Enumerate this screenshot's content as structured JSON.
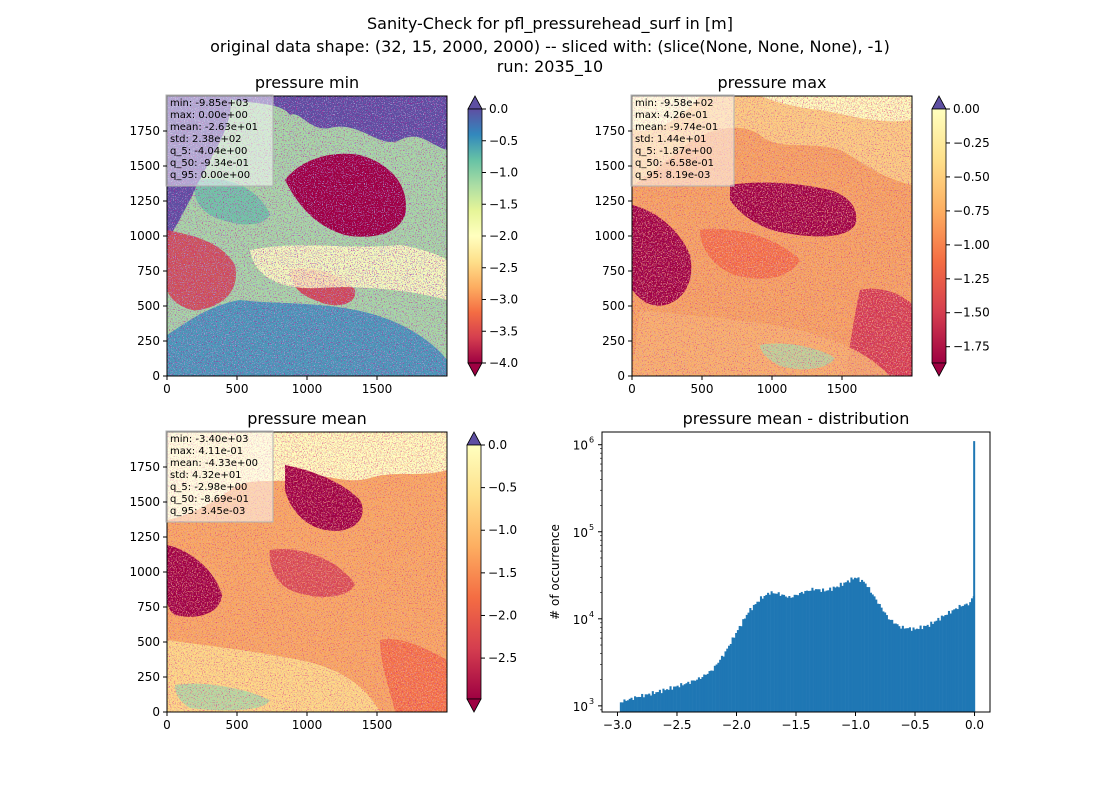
{
  "figure": {
    "suptitle_lines": [
      "Sanity-Check for pfl_pressurehead_surf in [m]",
      "original data shape: (32, 15, 2000, 2000) -- sliced with: (slice(None, None, None), -1)",
      "run: 2035_10"
    ]
  },
  "chart_data": [
    {
      "type": "heatmap",
      "title": "pressure min",
      "colormap": "Spectral",
      "over_color": "#5e4fa2",
      "under_color": "#9e0142",
      "xlim": [
        0,
        2000
      ],
      "ylim": [
        0,
        2000
      ],
      "xticks": [
        0,
        500,
        1000,
        1500
      ],
      "yticks": [
        0,
        250,
        500,
        750,
        1000,
        1250,
        1500,
        1750
      ],
      "colorbar": {
        "vmin": -4.0,
        "vmax": 0.0,
        "ticks": [
          0.0,
          -0.5,
          -1.0,
          -1.5,
          -2.0,
          -2.5,
          -3.0,
          -3.5,
          -4.0
        ],
        "tick_labels": [
          "0.0",
          "−0.5",
          "−1.0",
          "−1.5",
          "−2.0",
          "−2.5",
          "−3.0",
          "−3.5",
          "−4.0"
        ],
        "extend": "both"
      },
      "stats": [
        "min: -9.85e+03",
        "max: 0.00e+00",
        "mean: -2.63e+01",
        "std: 2.38e+02",
        "q_5: -4.04e+00",
        "q_50: -9.34e-01",
        "q_95: 0.00e+00"
      ]
    },
    {
      "type": "heatmap",
      "title": "pressure max",
      "colormap": "Spectral",
      "over_color": "#5e4fa2",
      "under_color": "#9e0142",
      "xlim": [
        0,
        2000
      ],
      "ylim": [
        0,
        2000
      ],
      "xticks": [
        0,
        500,
        1000,
        1500
      ],
      "yticks": [
        0,
        250,
        500,
        750,
        1000,
        1250,
        1500,
        1750
      ],
      "colorbar": {
        "vmin": -1.87,
        "vmax": 0.0,
        "ticks": [
          0.0,
          -0.25,
          -0.5,
          -0.75,
          -1.0,
          -1.25,
          -1.5,
          -1.75
        ],
        "tick_labels": [
          "0.00",
          "−0.25",
          "−0.50",
          "−0.75",
          "−1.00",
          "−1.25",
          "−1.50",
          "−1.75"
        ],
        "extend": "both"
      },
      "stats": [
        "min: -9.58e+02",
        "max: 4.26e-01",
        "mean: -9.74e-01",
        "std: 1.44e+01",
        "q_5: -1.87e+00",
        "q_50: -6.58e-01",
        "q_95: 8.19e-03"
      ]
    },
    {
      "type": "heatmap",
      "title": "pressure mean",
      "colormap": "Spectral",
      "over_color": "#5e4fa2",
      "under_color": "#9e0142",
      "xlim": [
        0,
        2000
      ],
      "ylim": [
        0,
        2000
      ],
      "xticks": [
        0,
        500,
        1000,
        1500
      ],
      "yticks": [
        0,
        250,
        500,
        750,
        1000,
        1250,
        1500,
        1750
      ],
      "colorbar": {
        "vmin": -2.98,
        "vmax": 0.0,
        "ticks": [
          0.0,
          -0.5,
          -1.0,
          -1.5,
          -2.0,
          -2.5
        ],
        "tick_labels": [
          "0.0",
          "−0.5",
          "−1.0",
          "−1.5",
          "−2.0",
          "−2.5"
        ],
        "extend": "both"
      },
      "stats": [
        "min: -3.40e+03",
        "max: 4.11e-01",
        "mean: -4.33e+00",
        "std: 4.32e+01",
        "q_5: -2.98e+00",
        "q_50: -8.69e-01",
        "q_95: 3.45e-03"
      ]
    },
    {
      "type": "bar",
      "title": "pressure mean - distribution",
      "ylabel": "# of occurrence",
      "yscale": "log",
      "color": "#1f77b4",
      "xlim": [
        -3.13,
        0.13
      ],
      "ylim": [
        850,
        1400000
      ],
      "xticks": [
        -3.0,
        -2.5,
        -2.0,
        -1.5,
        -1.0,
        -0.5,
        0.0
      ],
      "xtick_labels": [
        "−3.0",
        "−2.5",
        "−2.0",
        "−1.5",
        "−1.0",
        "−0.5",
        "0.0"
      ],
      "yticks": [
        1000,
        10000,
        100000,
        1000000
      ],
      "ytick_labels": [
        "10",
        "10",
        "10",
        "10"
      ],
      "ytick_exponents": [
        "3",
        "4",
        "5",
        "6"
      ],
      "bin_start": -2.98,
      "bin_width": 0.0149,
      "profile": [
        [
          -2.98,
          1100
        ],
        [
          -2.85,
          1250
        ],
        [
          -2.7,
          1400
        ],
        [
          -2.55,
          1600
        ],
        [
          -2.4,
          1850
        ],
        [
          -2.3,
          2100
        ],
        [
          -2.2,
          2600
        ],
        [
          -2.1,
          4000
        ],
        [
          -2.0,
          7000
        ],
        [
          -1.9,
          12000
        ],
        [
          -1.8,
          17000
        ],
        [
          -1.72,
          20000
        ],
        [
          -1.65,
          19500
        ],
        [
          -1.55,
          17500
        ],
        [
          -1.45,
          20000
        ],
        [
          -1.35,
          22000
        ],
        [
          -1.25,
          21000
        ],
        [
          -1.15,
          23500
        ],
        [
          -1.0,
          30000
        ],
        [
          -0.92,
          26000
        ],
        [
          -0.82,
          16000
        ],
        [
          -0.72,
          10000
        ],
        [
          -0.62,
          8000
        ],
        [
          -0.5,
          7600
        ],
        [
          -0.38,
          8500
        ],
        [
          -0.25,
          11000
        ],
        [
          -0.12,
          14000
        ],
        [
          -0.04,
          15000
        ],
        [
          -0.005,
          19000
        ]
      ],
      "spike": {
        "x": -0.003,
        "value": 1100000
      }
    }
  ]
}
